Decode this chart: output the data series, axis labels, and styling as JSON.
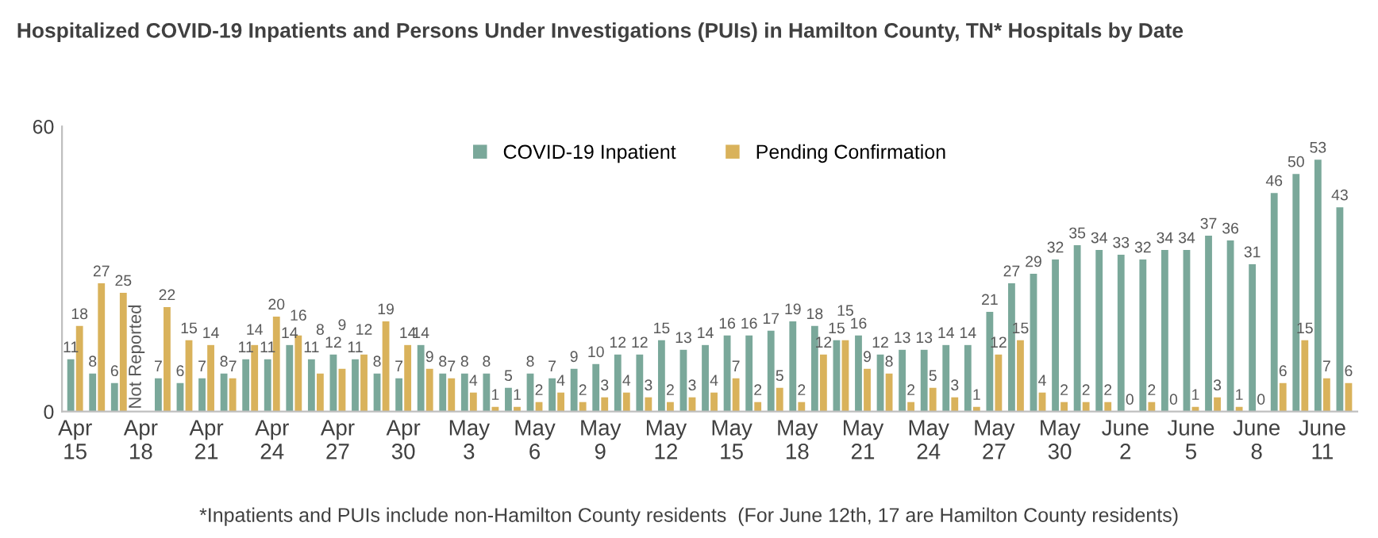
{
  "chart_data": {
    "type": "bar",
    "title": "Hospitalized COVID-19 Inpatients and Persons Under Investigations (PUIs) in Hamilton County, TN* Hospitals by Date",
    "categories": [
      "Apr\n15",
      null,
      null,
      "Apr\n18",
      null,
      null,
      "Apr\n21",
      null,
      null,
      "Apr\n24",
      null,
      null,
      "Apr\n27",
      null,
      null,
      "Apr\n30",
      null,
      null,
      "May\n3",
      null,
      null,
      "May\n6",
      null,
      null,
      "May\n9",
      null,
      null,
      "May\n12",
      null,
      null,
      "May\n15",
      null,
      null,
      "May\n18",
      null,
      null,
      "May\n21",
      null,
      null,
      "May\n24",
      null,
      null,
      "May\n27",
      null,
      null,
      "May\n30",
      null,
      null,
      "June\n2",
      null,
      null,
      "June\n5",
      null,
      null,
      "June\n8",
      null,
      null,
      "June\n11",
      null
    ],
    "series": [
      {
        "name": "COVID-19 Inpatient",
        "color": "#7aa89a",
        "values": [
          11,
          8,
          6,
          null,
          7,
          6,
          7,
          8,
          11,
          11,
          14,
          11,
          12,
          11,
          8,
          7,
          14,
          8,
          8,
          8,
          5,
          8,
          7,
          9,
          10,
          12,
          12,
          15,
          13,
          14,
          16,
          16,
          17,
          19,
          18,
          15,
          16,
          12,
          13,
          13,
          14,
          14,
          21,
          27,
          29,
          32,
          35,
          34,
          33,
          32,
          34,
          34,
          37,
          36,
          31,
          46,
          50,
          53,
          43
        ],
        "value_labels": [
          "11",
          "8",
          "6",
          "Not Reported",
          "7",
          "6",
          "7",
          "8",
          "11",
          "11",
          "14",
          "11",
          "12",
          "11",
          "8",
          "7",
          "14",
          "8",
          "8",
          "8",
          "5",
          "8",
          "7",
          "9",
          "10",
          "12",
          "12",
          "15",
          "13",
          "14",
          "16",
          "16",
          "17",
          "19",
          "18",
          "15",
          "16",
          "12",
          "13",
          "13",
          "14",
          "14",
          "21",
          "27",
          "29",
          "32",
          "35",
          "34",
          "33",
          "32",
          "34",
          "34",
          "37",
          "36",
          "31",
          "46",
          "50",
          "53",
          "43"
        ]
      },
      {
        "name": "Pending Confirmation",
        "color": "#d9b25b",
        "values": [
          18,
          27,
          25,
          null,
          22,
          15,
          14,
          7,
          14,
          20,
          16,
          8,
          9,
          12,
          19,
          14,
          9,
          7,
          4,
          1,
          1,
          2,
          4,
          2,
          3,
          4,
          3,
          2,
          3,
          4,
          7,
          2,
          5,
          2,
          12,
          15,
          9,
          8,
          2,
          5,
          3,
          1,
          12,
          15,
          4,
          2,
          2,
          2,
          0,
          2,
          0,
          1,
          3,
          1,
          0,
          6,
          15,
          7,
          6
        ]
      }
    ],
    "ylim": [
      0,
      60
    ],
    "yticks": [
      0,
      60
    ],
    "grid": false,
    "legend": "top",
    "data_labels": true,
    "annotations": [
      "*Inpatients and PUIs include non-Hamilton County residents  (For June 12th, 17 are Hamilton County residents)"
    ]
  }
}
